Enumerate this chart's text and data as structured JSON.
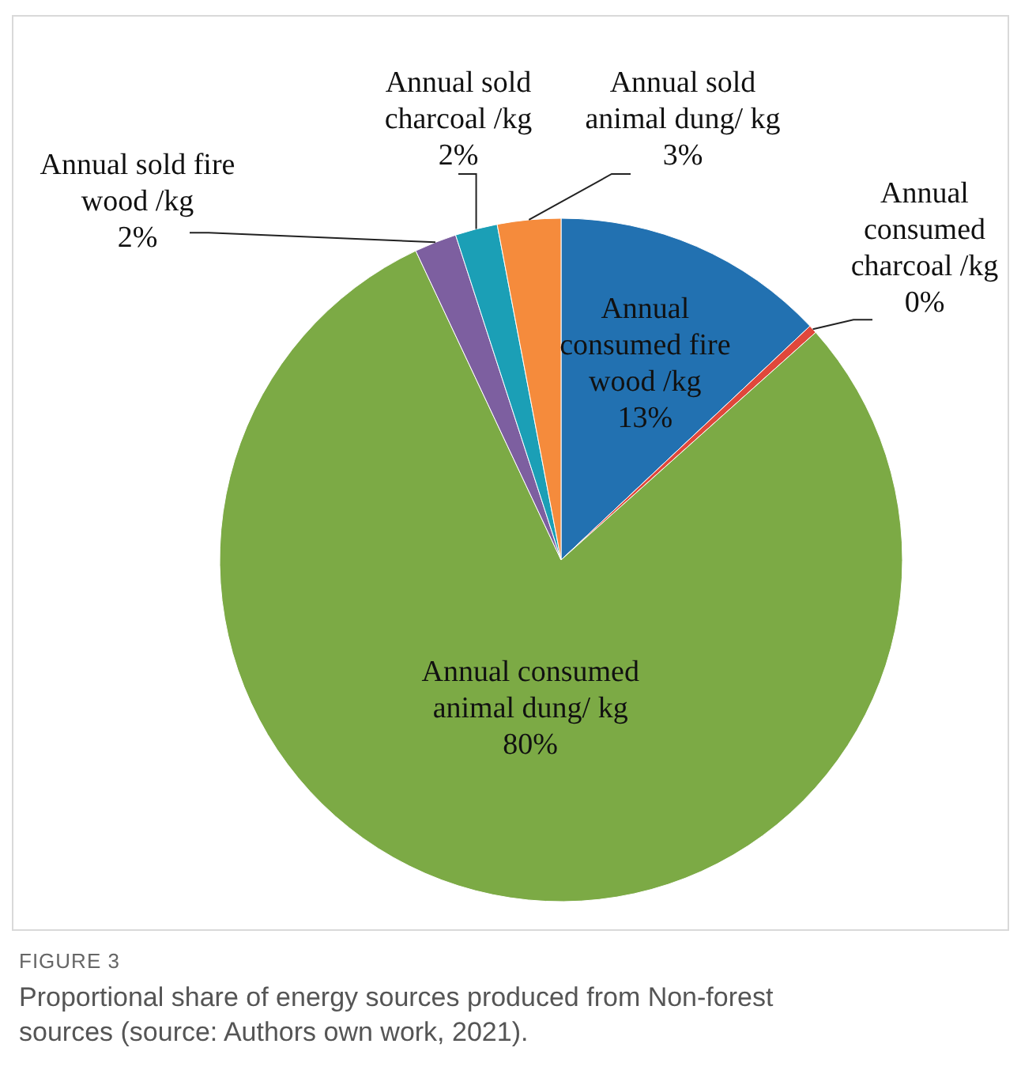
{
  "chart_data": {
    "type": "pie",
    "categories": [
      "Annual consumed fire wood /kg",
      "Annual consumed charcoal /kg",
      "Annual consumed animal dung/ kg",
      "Annual sold fire wood  /kg",
      "Annual sold charcoal /kg",
      "Annual sold animal dung/ kg"
    ],
    "values": [
      13,
      0.4,
      79.6,
      2,
      2,
      3
    ],
    "value_labels": [
      "13%",
      "0%",
      "80%",
      "2%",
      "2%",
      "3%"
    ],
    "colors": [
      "#2271b1",
      "#e0473b",
      "#7caa45",
      "#7d5fa0",
      "#1b9fb6",
      "#f58b3c"
    ],
    "annotations": [
      "FIGURE 3",
      "Proportional share of energy sources produced from Non-forest sources (source: Authors own work, 2021)."
    ]
  }
}
